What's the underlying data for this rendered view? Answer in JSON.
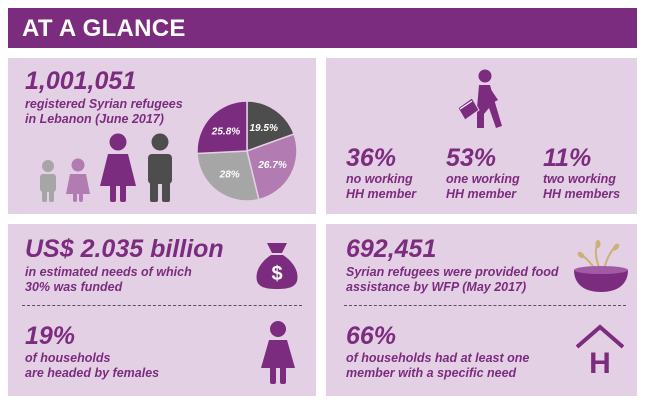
{
  "header": {
    "title": "AT A GLANCE"
  },
  "refugees": {
    "count": "1,001,051",
    "description": "registered Syrian refugees\nin Lebanon (June 2017)",
    "icons": [
      "boy-icon",
      "girl-icon",
      "woman-icon",
      "man-icon"
    ],
    "pie": {
      "slices": [
        {
          "label": "19.5%",
          "value": 19.5,
          "color": "#4d4d4d"
        },
        {
          "label": "26.7%",
          "value": 26.7,
          "color": "#b27cb2"
        },
        {
          "label": "28%",
          "value": 28,
          "color": "#a6a6a6"
        },
        {
          "label": "25.8%",
          "value": 25.8,
          "color": "#7b2c7e"
        }
      ]
    }
  },
  "working": {
    "icon": "walking-person-with-bag-icon",
    "stats": [
      {
        "value": "36%",
        "label": "no working\nHH member"
      },
      {
        "value": "53%",
        "label": "one working\nHH member"
      },
      {
        "value": "11%",
        "label": "two working\nHH members"
      }
    ]
  },
  "needs": {
    "amount": "US$ 2.035 billion",
    "description": "in estimated needs of which\n30% was funded",
    "icon": "money-bag-icon",
    "money_symbol": "$",
    "female_stat": "19%",
    "female_description": "of households\nare headed by females",
    "female_icon": "woman-icon"
  },
  "food": {
    "count": "692,451",
    "description": "Syrian refugees were provided food\nassistance by WFP (May 2017)",
    "icon": "food-bowl-icon",
    "specific_need_stat": "66%",
    "specific_need_description": "of households had at least one\nmember with a specific need",
    "house_icon": "house-h-icon",
    "house_letter": "H"
  },
  "colors": {
    "accent": "#7b2c7e",
    "panel": "#e4d0e4",
    "dark": "#4d4d4d",
    "light_gray": "#a6a6a6",
    "light_purple": "#b27cb2"
  }
}
